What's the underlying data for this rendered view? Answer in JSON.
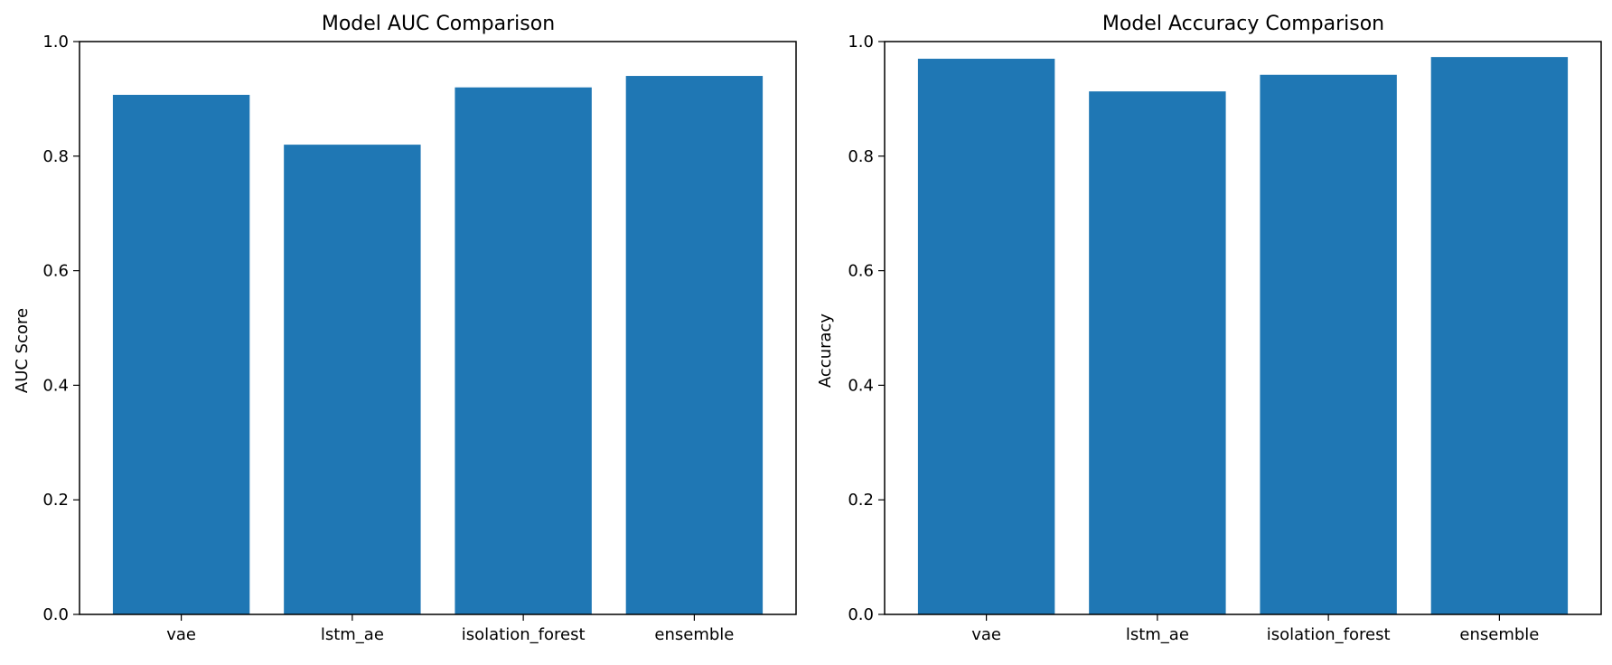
{
  "chart_data": [
    {
      "type": "bar",
      "title": "Model AUC Comparison",
      "xlabel": "",
      "ylabel": "AUC Score",
      "categories": [
        "vae",
        "lstm_ae",
        "isolation_forest",
        "ensemble"
      ],
      "values": [
        0.907,
        0.82,
        0.92,
        0.94
      ],
      "ylim": [
        0,
        1.0
      ],
      "yticks": [
        "0.0",
        "0.2",
        "0.4",
        "0.6",
        "0.8",
        "1.0"
      ],
      "bar_color": "#1f77b4",
      "grid": false
    },
    {
      "type": "bar",
      "title": "Model Accuracy Comparison",
      "xlabel": "",
      "ylabel": "Accuracy",
      "categories": [
        "vae",
        "lstm_ae",
        "isolation_forest",
        "ensemble"
      ],
      "values": [
        0.97,
        0.913,
        0.942,
        0.973
      ],
      "ylim": [
        0,
        1.0
      ],
      "yticks": [
        "0.0",
        "0.2",
        "0.4",
        "0.6",
        "0.8",
        "1.0"
      ],
      "bar_color": "#1f77b4",
      "grid": false
    }
  ]
}
